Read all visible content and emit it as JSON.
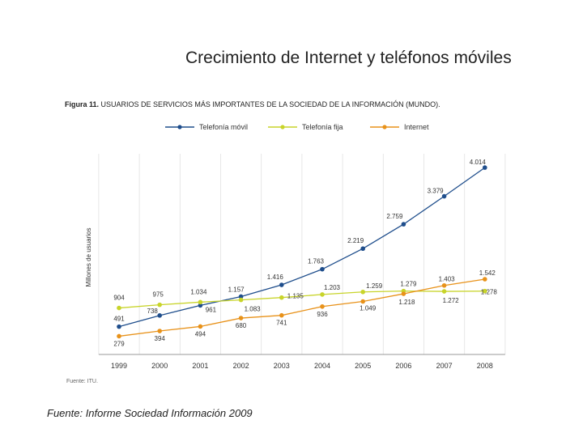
{
  "slide_title": "Crecimiento de Internet y teléfonos móviles",
  "figure_caption": {
    "label": "Figura 11.",
    "text": "USUARIOS DE SERVICIOS MÁS IMPORTANTES DE LA SOCIEDAD DE LA INFORMACIÓN (MUNDO)."
  },
  "source_note": "Fuente: ITU.",
  "footer_source": "Fuente: Informe Sociedad Información 2009",
  "chart_data": {
    "type": "line",
    "title": "USUARIOS DE SERVICIOS MÁS IMPORTANTES DE LA SOCIEDAD DE LA INFORMACIÓN (MUNDO).",
    "xlabel": "",
    "ylabel": "Millones de usuarios",
    "categories": [
      "1999",
      "2000",
      "2001",
      "2002",
      "2003",
      "2004",
      "2005",
      "2006",
      "2007",
      "2008"
    ],
    "ylim": [
      0,
      4500
    ],
    "grid": "vertical",
    "legend_position": "top",
    "series": [
      {
        "name": "Telefonía móvil",
        "color": "#1f4e8c",
        "values": [
          491,
          738,
          961,
          1157,
          1416,
          1763,
          2219,
          2759,
          3379,
          4014
        ],
        "labels": [
          "491",
          "738",
          "961",
          "1.157",
          "1.416",
          "1.763",
          "2.219",
          "2.759",
          "3.379",
          "4.014"
        ]
      },
      {
        "name": "Telefonía fija",
        "color": "#c8d42a",
        "values": [
          904,
          975,
          1034,
          1083,
          1135,
          1203,
          1259,
          1279,
          1272,
          1278
        ],
        "labels": [
          "904",
          "975",
          "1.034",
          "1.083",
          "1.135",
          "1.203",
          "1.259",
          "1.279",
          "1.272",
          "1.278"
        ]
      },
      {
        "name": "Internet",
        "color": "#e8921a",
        "values": [
          279,
          394,
          494,
          680,
          741,
          936,
          1049,
          1218,
          1403,
          1542
        ],
        "labels": [
          "279",
          "394",
          "494",
          "680",
          "741",
          "936",
          "1.049",
          "1.218",
          "1.403",
          "1.542"
        ]
      }
    ]
  }
}
